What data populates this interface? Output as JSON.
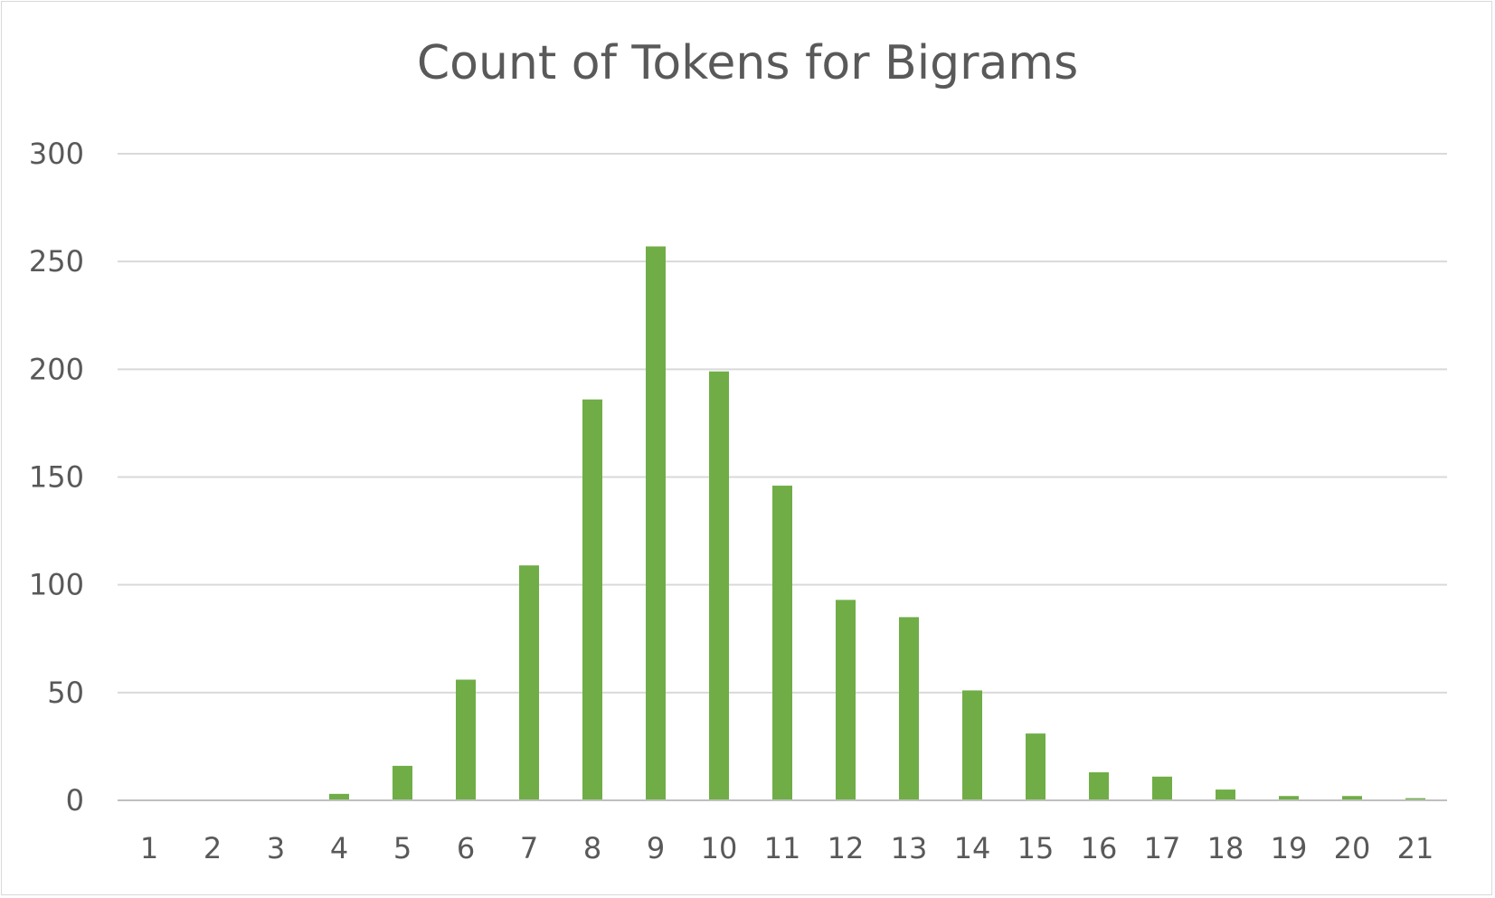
{
  "chart_data": {
    "type": "bar",
    "title": "Count of Tokens for Bigrams",
    "xlabel": "",
    "ylabel": "",
    "categories": [
      "1",
      "2",
      "3",
      "4",
      "5",
      "6",
      "7",
      "8",
      "9",
      "10",
      "11",
      "12",
      "13",
      "14",
      "15",
      "16",
      "17",
      "18",
      "19",
      "20",
      "21"
    ],
    "values": [
      0,
      0,
      0,
      3,
      16,
      56,
      109,
      186,
      257,
      199,
      146,
      93,
      85,
      51,
      31,
      13,
      11,
      5,
      2,
      2,
      1
    ],
    "ylim": [
      0,
      300
    ],
    "yticks": [
      "0",
      "50",
      "100",
      "150",
      "200",
      "250",
      "300"
    ],
    "grid": true,
    "legend": "none",
    "colors": {
      "bar": "#70ad47",
      "grid": "#d9d9d9",
      "axis": "#bfbfbf",
      "text": "#595959"
    }
  }
}
